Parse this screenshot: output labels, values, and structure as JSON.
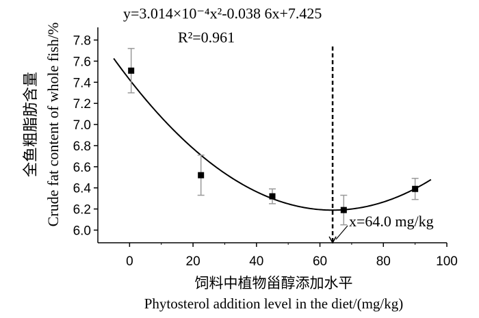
{
  "chart_data": {
    "type": "scatter",
    "annotation_equation": "y=3.014×10⁻⁴x²-0.038 6x+7.425",
    "annotation_r2": "R²=0.961",
    "annotation_optimum": "x=64.0 mg/kg",
    "xlabel_cn": "饲料中植物甾醇添加水平",
    "xlabel_en": "Phytosterol addition level in the diet/(mg/kg)",
    "ylabel_cn": "全鱼粗脂肪含量",
    "ylabel_en": "Crude fat content of whole fish/%",
    "xlim": [
      -10,
      100
    ],
    "ylim": [
      5.88,
      7.92
    ],
    "x_ticks": [
      "0",
      "20",
      "40",
      "60",
      "80",
      "100"
    ],
    "y_ticks": [
      "6.0",
      "6.2",
      "6.4",
      "6.6",
      "6.8",
      "7.0",
      "7.2",
      "7.4",
      "7.6",
      "7.8"
    ],
    "points": [
      {
        "x": 0.5,
        "y": 7.51,
        "err": 0.21
      },
      {
        "x": 22.5,
        "y": 6.52,
        "err": 0.19
      },
      {
        "x": 45.0,
        "y": 6.32,
        "err": 0.07
      },
      {
        "x": 67.5,
        "y": 6.19,
        "err": 0.14
      },
      {
        "x": 90.0,
        "y": 6.39,
        "err": 0.1
      }
    ],
    "fit": {
      "a": 0.0003014,
      "b": -0.0386,
      "c": 7.425,
      "x_start": -5,
      "x_end": 95
    },
    "vline_x": 64.0
  }
}
